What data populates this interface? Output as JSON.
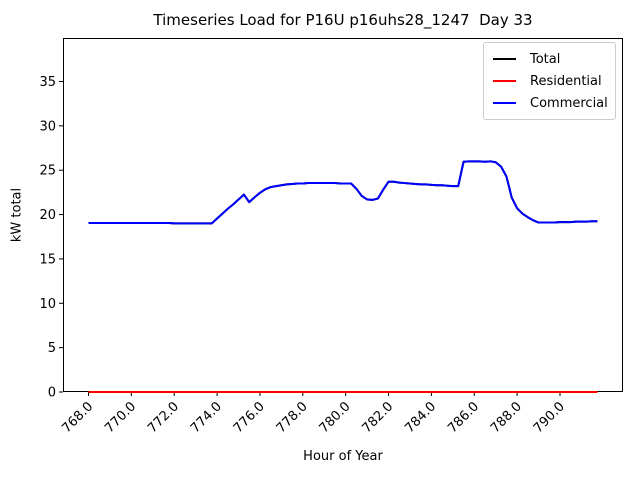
{
  "chart_data": {
    "type": "line",
    "title": "Timeseries Load for P16U p16uhs28_1247  Day 33",
    "xlabel": "Hour of Year",
    "ylabel": "kW total",
    "xlim": [
      766.81,
      792.94
    ],
    "ylim": [
      0,
      39.9
    ],
    "grid": false,
    "x_ticks": [
      768,
      770,
      772,
      774,
      776,
      778,
      780,
      782,
      784,
      786,
      788,
      790
    ],
    "x_tick_labels": [
      "768.0",
      "770.0",
      "772.0",
      "774.0",
      "776.0",
      "778.0",
      "780.0",
      "782.0",
      "784.0",
      "786.0",
      "788.0",
      "790.0"
    ],
    "y_ticks": [
      0,
      5,
      10,
      15,
      20,
      25,
      30,
      35
    ],
    "y_tick_labels": [
      "0",
      "5",
      "10",
      "15",
      "20",
      "25",
      "30",
      "35"
    ],
    "x_start": 768.0,
    "x_step": 0.25,
    "legend": {
      "position": "upper right",
      "entries": [
        {
          "label": "Total",
          "color": "#000000"
        },
        {
          "label": "Residential",
          "color": "#ff0000"
        },
        {
          "label": "Commercial",
          "color": "#0000ff"
        }
      ]
    },
    "series": [
      {
        "name": "Total",
        "color": "#000000",
        "values_same_as": "Commercial"
      },
      {
        "name": "Residential",
        "color": "#ff0000",
        "constant": 0,
        "length": 96
      },
      {
        "name": "Commercial",
        "color": "#0000ff",
        "values": [
          19.05,
          19.05,
          19.05,
          19.05,
          19.05,
          19.05,
          19.05,
          19.05,
          19.05,
          19.05,
          19.05,
          19.05,
          19.05,
          19.05,
          19.05,
          19.05,
          19.0,
          19.0,
          19.0,
          19.0,
          19.0,
          19.0,
          19.0,
          19.0,
          19.55,
          20.1,
          20.65,
          21.15,
          21.7,
          22.25,
          21.4,
          21.95,
          22.45,
          22.85,
          23.1,
          23.2,
          23.3,
          23.4,
          23.45,
          23.5,
          23.5,
          23.55,
          23.55,
          23.55,
          23.55,
          23.55,
          23.55,
          23.5,
          23.5,
          23.5,
          22.9,
          22.1,
          21.7,
          21.65,
          21.8,
          22.8,
          23.7,
          23.7,
          23.6,
          23.55,
          23.5,
          23.45,
          23.4,
          23.4,
          23.35,
          23.3,
          23.3,
          23.25,
          23.2,
          23.2,
          25.95,
          26.0,
          26.0,
          26.0,
          25.95,
          26.0,
          25.9,
          25.4,
          24.3,
          21.9,
          20.7,
          20.1,
          19.7,
          19.35,
          19.1,
          19.1,
          19.1,
          19.1,
          19.15,
          19.15,
          19.15,
          19.2,
          19.2,
          19.2,
          19.25,
          19.25
        ]
      }
    ]
  }
}
